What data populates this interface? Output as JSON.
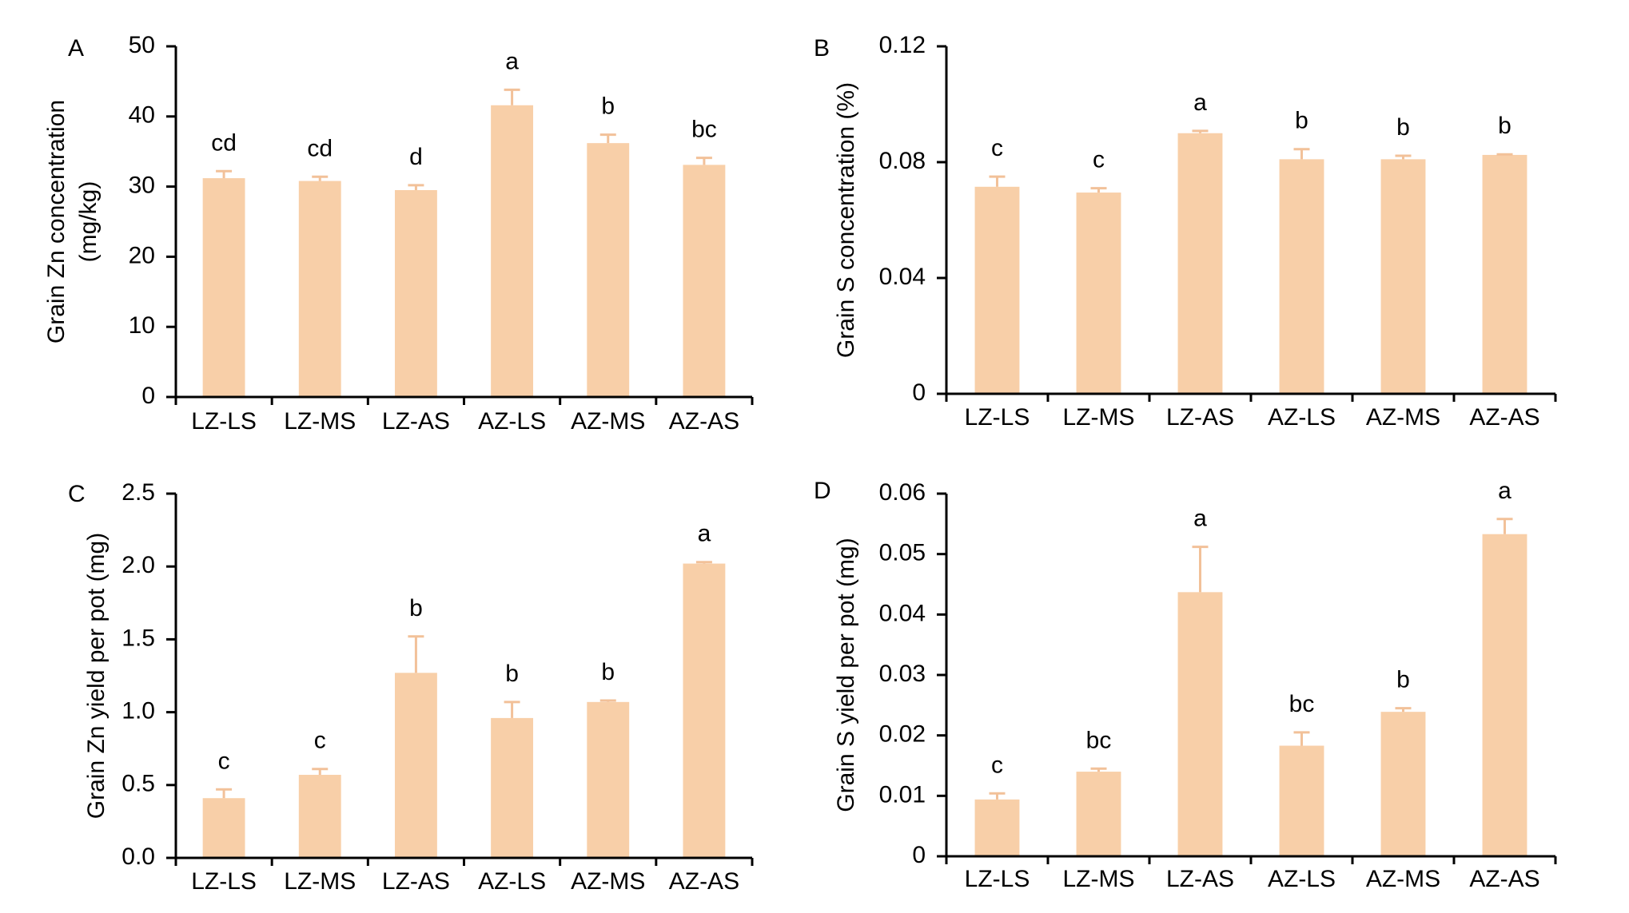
{
  "colors": {
    "bar": "#f8cfa8",
    "error": "#f2c199",
    "axis": "#000000",
    "text": "#000000"
  },
  "chart_data": [
    {
      "panel": "A",
      "type": "bar",
      "categories": [
        "LZ-LS",
        "LZ-MS",
        "LZ-AS",
        "AZ-LS",
        "AZ-MS",
        "AZ-AS"
      ],
      "values": [
        31.2,
        30.8,
        29.5,
        41.6,
        36.2,
        33.1
      ],
      "errors": [
        1.0,
        0.6,
        0.7,
        2.2,
        1.2,
        1.0
      ],
      "letters": [
        "cd",
        "cd",
        "d",
        "a",
        "b",
        "bc"
      ],
      "ylabel_line1": "Grain Zn concentration",
      "ylabel_line2": "(mg/kg)",
      "ylim": [
        0,
        50
      ],
      "yticks": [
        "0",
        "10",
        "20",
        "30",
        "40",
        "50"
      ]
    },
    {
      "panel": "B",
      "type": "bar",
      "categories": [
        "LZ-LS",
        "LZ-MS",
        "LZ-AS",
        "AZ-LS",
        "AZ-MS",
        "AZ-AS"
      ],
      "values": [
        0.0715,
        0.0695,
        0.09,
        0.081,
        0.081,
        0.0825
      ],
      "errors": [
        0.0035,
        0.0015,
        0.0008,
        0.0035,
        0.0012,
        0.0002
      ],
      "letters": [
        "c",
        "c",
        "a",
        "b",
        "b",
        "b"
      ],
      "ylabel_line1": "Grain S concentration (%)",
      "ylabel_line2": "",
      "ylim": [
        0,
        0.12
      ],
      "yticks": [
        "0",
        "0.04",
        "0.08",
        "0.12"
      ]
    },
    {
      "panel": "C",
      "type": "bar",
      "categories": [
        "LZ-LS",
        "LZ-MS",
        "LZ-AS",
        "AZ-LS",
        "AZ-MS",
        "AZ-AS"
      ],
      "values": [
        0.41,
        0.57,
        1.27,
        0.96,
        1.07,
        2.02
      ],
      "errors": [
        0.06,
        0.04,
        0.25,
        0.11,
        0.01,
        0.01
      ],
      "letters": [
        "c",
        "c",
        "b",
        "b",
        "b",
        "a"
      ],
      "ylabel_line1": "Grain Zn yield per pot (mg)",
      "ylabel_line2": "",
      "ylim": [
        0,
        2.5
      ],
      "yticks": [
        "0.0",
        "0.5",
        "1.0",
        "1.5",
        "2.0",
        "2.5"
      ]
    },
    {
      "panel": "D",
      "type": "bar",
      "categories": [
        "LZ-LS",
        "LZ-MS",
        "LZ-AS",
        "AZ-LS",
        "AZ-MS",
        "AZ-AS"
      ],
      "values": [
        0.0094,
        0.014,
        0.0437,
        0.0183,
        0.0239,
        0.0533
      ],
      "errors": [
        0.001,
        0.0005,
        0.0075,
        0.0022,
        0.0006,
        0.0025
      ],
      "letters": [
        "c",
        "bc",
        "a",
        "bc",
        "b",
        "a"
      ],
      "ylabel_line1": "Grain S yield per pot (mg)",
      "ylabel_line2": "",
      "ylim": [
        0,
        0.06
      ],
      "yticks": [
        "0",
        "0.01",
        "0.02",
        "0.03",
        "0.04",
        "0.05",
        "0.06"
      ]
    }
  ]
}
